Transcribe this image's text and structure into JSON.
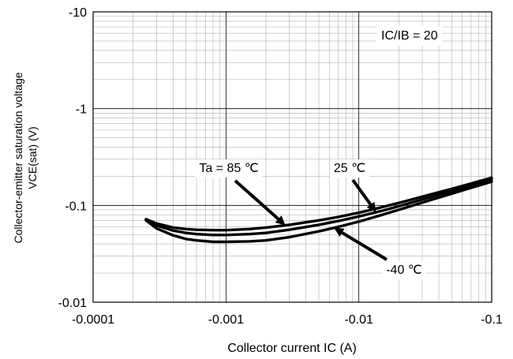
{
  "chart_data": {
    "type": "line",
    "title": "",
    "xlabel": "Collector current IC (A)",
    "ylabel_line1": "Collector-emitter saturation voltage",
    "ylabel_line2": "VCE(sat) (V)",
    "x_scale": "log",
    "y_scale": "log",
    "xlim": [
      -0.0001,
      -0.1
    ],
    "ylim": [
      -0.01,
      -10
    ],
    "x_ticks": [
      {
        "value": -0.0001,
        "label": "-0.0001"
      },
      {
        "value": -0.001,
        "label": "-0.001"
      },
      {
        "value": -0.01,
        "label": "-0.01"
      },
      {
        "value": -0.1,
        "label": "-0.1"
      }
    ],
    "y_ticks": [
      {
        "value": -0.01,
        "label": "-0.01"
      },
      {
        "value": -0.1,
        "label": "-0.1"
      },
      {
        "value": -1,
        "label": "-1"
      },
      {
        "value": -10,
        "label": "-10"
      }
    ],
    "grid": true,
    "condition_label": "IC/IB = 20",
    "series": [
      {
        "name": "Ta = 85 ℃",
        "color": "#000000",
        "x": [
          -0.00025,
          -0.0003,
          -0.0004,
          -0.0005,
          -0.0006,
          -0.0008,
          -0.001,
          -0.0015,
          -0.002,
          -0.003,
          -0.005,
          -0.007,
          -0.01,
          -0.015,
          -0.02,
          -0.03,
          -0.05,
          -0.07,
          -0.1
        ],
        "y": [
          -0.072,
          -0.065,
          -0.059,
          -0.057,
          -0.056,
          -0.0555,
          -0.0555,
          -0.057,
          -0.059,
          -0.063,
          -0.07,
          -0.076,
          -0.084,
          -0.096,
          -0.106,
          -0.123,
          -0.148,
          -0.168,
          -0.193
        ]
      },
      {
        "name": "25 ℃",
        "color": "#000000",
        "x": [
          -0.00025,
          -0.0003,
          -0.0004,
          -0.0005,
          -0.0006,
          -0.0008,
          -0.001,
          -0.0015,
          -0.002,
          -0.003,
          -0.005,
          -0.007,
          -0.01,
          -0.015,
          -0.02,
          -0.03,
          -0.05,
          -0.07,
          -0.1
        ],
        "y": [
          -0.071,
          -0.062,
          -0.055,
          -0.052,
          -0.0505,
          -0.0495,
          -0.0495,
          -0.0505,
          -0.052,
          -0.056,
          -0.063,
          -0.069,
          -0.077,
          -0.088,
          -0.098,
          -0.115,
          -0.14,
          -0.16,
          -0.185
        ]
      },
      {
        "name": "-40 ℃",
        "color": "#000000",
        "x": [
          -0.00025,
          -0.0003,
          -0.0004,
          -0.0005,
          -0.0006,
          -0.0008,
          -0.001,
          -0.0015,
          -0.002,
          -0.003,
          -0.005,
          -0.007,
          -0.01,
          -0.015,
          -0.02,
          -0.03,
          -0.05,
          -0.07,
          -0.1
        ],
        "y": [
          -0.07,
          -0.058,
          -0.049,
          -0.045,
          -0.0435,
          -0.042,
          -0.042,
          -0.0425,
          -0.0435,
          -0.047,
          -0.054,
          -0.06,
          -0.068,
          -0.08,
          -0.09,
          -0.107,
          -0.132,
          -0.152,
          -0.176
        ]
      }
    ],
    "annotations": [
      {
        "text": "Ta = 85 ℃",
        "target_series": 0,
        "target_x": -0.0028
      },
      {
        "text": "25 ℃",
        "target_series": 1,
        "target_x": -0.0135
      },
      {
        "text": "-40 ℃",
        "target_series": 2,
        "target_x": -0.0065
      }
    ]
  }
}
